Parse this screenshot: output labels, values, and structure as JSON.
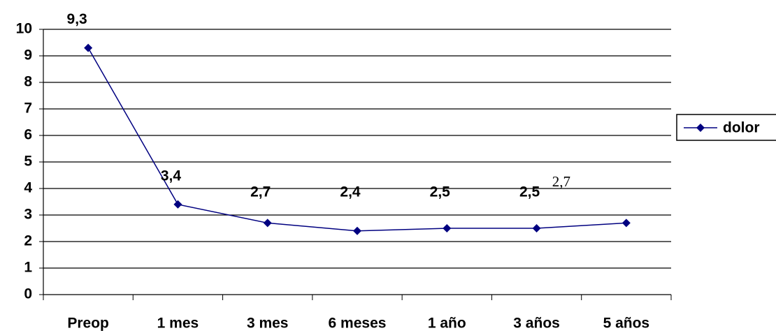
{
  "chart_data": {
    "type": "line",
    "categories": [
      "Preop",
      "1 mes",
      "3 mes",
      "6 meses",
      "1 año",
      "3 años",
      "5 años"
    ],
    "series": [
      {
        "name": "dolor",
        "color": "#000080",
        "values": [
          9.3,
          3.4,
          2.7,
          2.4,
          2.5,
          2.5,
          2.7
        ],
        "value_labels": [
          "9,3",
          "3,4",
          "2,7",
          "2,4",
          "2,5",
          "2,5",
          "2,7"
        ]
      }
    ],
    "ylim": [
      0,
      10
    ],
    "yticks": [
      0,
      1,
      2,
      3,
      4,
      5,
      6,
      7,
      8,
      9,
      10
    ],
    "grid": true,
    "legend": "right"
  }
}
